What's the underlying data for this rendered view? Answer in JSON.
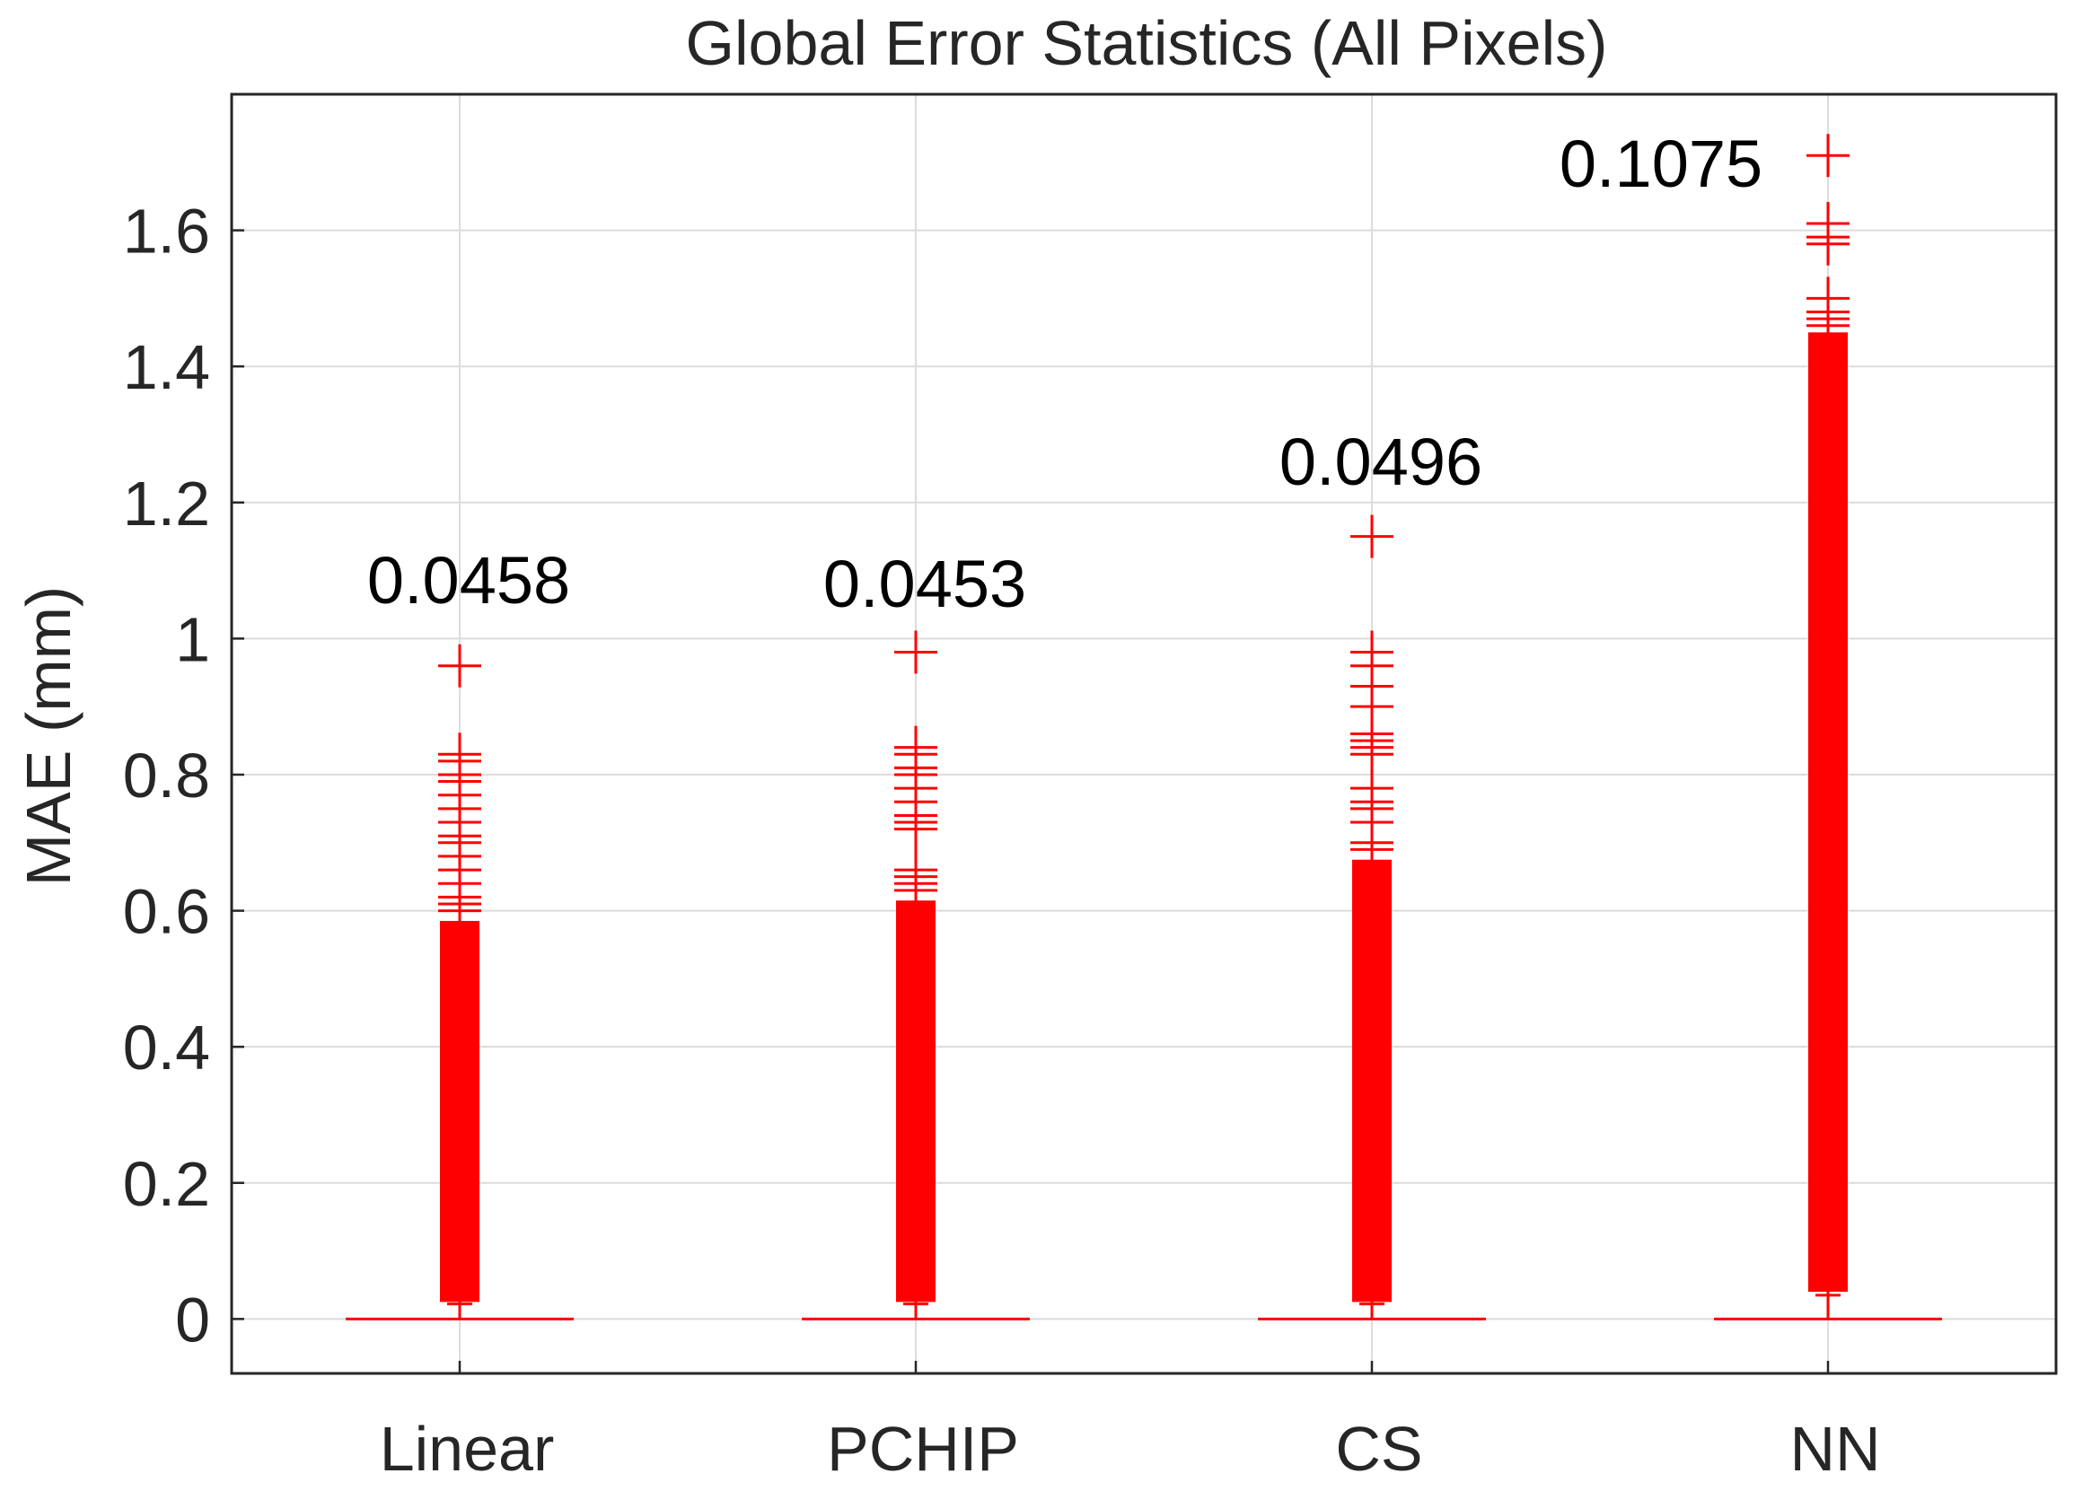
{
  "chart_data": {
    "type": "box",
    "title": "Global Error Statistics (All Pixels)",
    "xlabel": "",
    "ylabel": "MAE (mm)",
    "ylim": [
      -0.08,
      1.8
    ],
    "yticks": [
      0,
      0.2,
      0.4,
      0.6,
      0.8,
      1,
      1.2,
      1.4,
      1.6
    ],
    "ytick_labels": [
      "0",
      "0.2",
      "0.4",
      "0.6",
      "0.8",
      "1",
      "1.2",
      "1.4",
      "1.6"
    ],
    "grid": true,
    "categories": [
      "Linear",
      "PCHIP",
      "CS",
      "NN"
    ],
    "annotations": [
      "0.0458",
      "0.0453",
      "0.0496",
      "0.1075"
    ],
    "median_color": "#ff0000",
    "outlier_color": "#ff0000",
    "boxes": [
      {
        "name": "Linear",
        "median": 0,
        "q1": 0,
        "q3": 0,
        "whisker_high": 0.022,
        "outlier_band": [
          0.025,
          0.585
        ],
        "outliers": [
          0.6,
          0.61,
          0.62,
          0.64,
          0.66,
          0.68,
          0.7,
          0.71,
          0.73,
          0.75,
          0.77,
          0.79,
          0.8,
          0.82,
          0.83,
          0.96
        ]
      },
      {
        "name": "PCHIP",
        "median": 0,
        "q1": 0,
        "q3": 0,
        "whisker_high": 0.022,
        "outlier_band": [
          0.025,
          0.615
        ],
        "outliers": [
          0.63,
          0.64,
          0.65,
          0.66,
          0.72,
          0.73,
          0.74,
          0.76,
          0.78,
          0.8,
          0.81,
          0.83,
          0.84,
          0.98
        ]
      },
      {
        "name": "CS",
        "median": 0,
        "q1": 0,
        "q3": 0,
        "whisker_high": 0.022,
        "outlier_band": [
          0.025,
          0.675
        ],
        "outliers": [
          0.69,
          0.7,
          0.73,
          0.75,
          0.76,
          0.78,
          0.83,
          0.84,
          0.85,
          0.86,
          0.9,
          0.93,
          0.96,
          0.98,
          1.15
        ]
      },
      {
        "name": "NN",
        "median": 0,
        "q1": 0,
        "q3": 0,
        "whisker_high": 0.035,
        "outlier_band": [
          0.04,
          1.45
        ],
        "outliers": [
          1.46,
          1.47,
          1.48,
          1.5,
          1.58,
          1.59,
          1.61,
          1.71
        ]
      }
    ]
  }
}
